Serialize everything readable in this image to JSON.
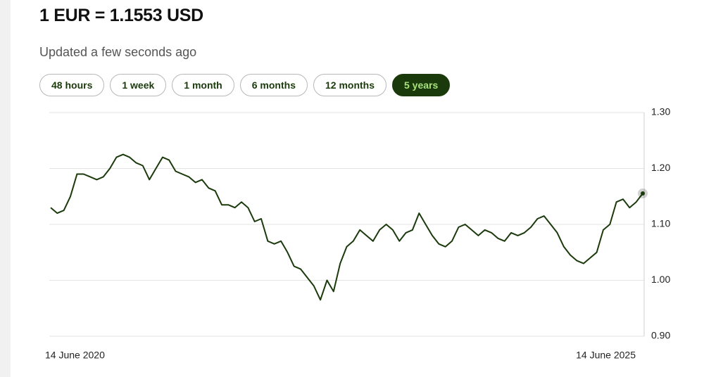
{
  "header": {
    "title": "1 EUR = 1.1553 USD",
    "updated": "Updated a few seconds ago"
  },
  "range_buttons": {
    "options": [
      "48 hours",
      "1 week",
      "1 month",
      "6 months",
      "12 months",
      "5 years"
    ],
    "active": 5
  },
  "chart_data": {
    "type": "line",
    "color": "#1b3a0c",
    "grid": true,
    "y_axis_side": "right",
    "ylim": [
      0.9,
      1.3
    ],
    "yticks": [
      {
        "value": 0.9,
        "label": "0.90"
      },
      {
        "value": 1.0,
        "label": "1.00"
      },
      {
        "value": 1.1,
        "label": "1.10"
      },
      {
        "value": 1.2,
        "label": "1.20"
      },
      {
        "value": 1.3,
        "label": "1.30"
      }
    ],
    "categories": [
      "14 June 2020",
      null,
      null,
      null,
      null,
      null,
      null,
      null,
      null,
      null,
      null,
      null,
      null,
      null,
      null,
      null,
      null,
      null,
      null,
      null,
      null,
      null,
      null,
      null,
      null,
      null,
      null,
      null,
      null,
      null,
      null,
      null,
      null,
      null,
      null,
      null,
      null,
      null,
      null,
      null,
      null,
      null,
      null,
      null,
      null,
      null,
      null,
      null,
      null,
      null,
      null,
      null,
      null,
      null,
      null,
      null,
      null,
      null,
      null,
      null,
      null,
      null,
      null,
      null,
      null,
      null,
      null,
      null,
      null,
      null,
      null,
      null,
      null,
      null,
      null,
      null,
      null,
      null,
      null,
      null,
      null,
      null,
      null,
      null,
      null,
      null,
      null,
      null,
      null,
      null,
      "14 June 2025"
    ],
    "values": [
      1.13,
      1.12,
      1.125,
      1.15,
      1.19,
      1.19,
      1.185,
      1.18,
      1.185,
      1.2,
      1.22,
      1.225,
      1.22,
      1.21,
      1.205,
      1.18,
      1.2,
      1.22,
      1.215,
      1.195,
      1.19,
      1.185,
      1.175,
      1.18,
      1.165,
      1.16,
      1.135,
      1.135,
      1.13,
      1.14,
      1.13,
      1.105,
      1.11,
      1.07,
      1.065,
      1.07,
      1.05,
      1.025,
      1.02,
      1.005,
      0.99,
      0.965,
      1.0,
      0.98,
      1.03,
      1.06,
      1.07,
      1.09,
      1.08,
      1.07,
      1.09,
      1.1,
      1.09,
      1.07,
      1.085,
      1.09,
      1.12,
      1.1,
      1.08,
      1.065,
      1.06,
      1.07,
      1.095,
      1.1,
      1.09,
      1.08,
      1.09,
      1.085,
      1.075,
      1.07,
      1.085,
      1.08,
      1.085,
      1.095,
      1.11,
      1.115,
      1.1,
      1.085,
      1.06,
      1.045,
      1.035,
      1.03,
      1.04,
      1.05,
      1.09,
      1.1,
      1.14,
      1.145,
      1.13,
      1.14,
      1.1553
    ]
  }
}
